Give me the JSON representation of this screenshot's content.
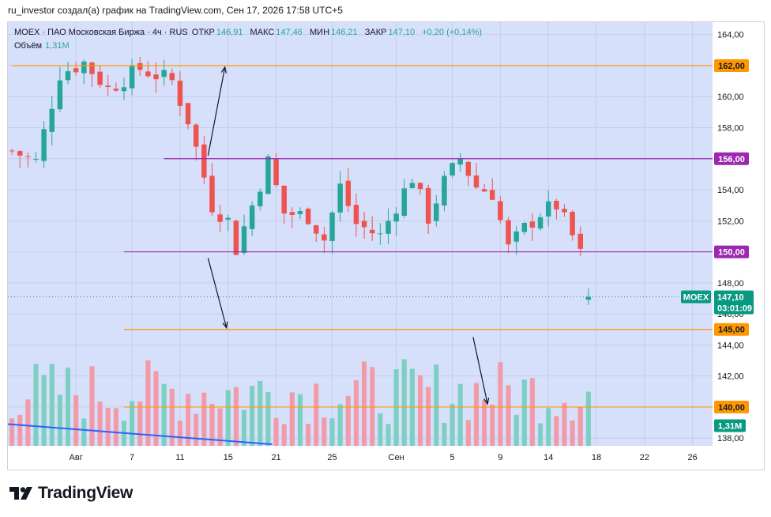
{
  "header": {
    "caption": "ru_investor создал(а) график на TradingView.com, Сен 17, 2026 17:58 UTC+5"
  },
  "legend": {
    "symbol": "MOEX · ПАО Московская Биржа · 4ч · RUS",
    "open_label": "ОТКР",
    "open_value": "146,91",
    "high_label": "МАКС",
    "high_value": "147,46",
    "low_label": "МИН",
    "low_value": "146,21",
    "close_label": "ЗАКР",
    "close_value": "147,10",
    "change": "+0,20 (+0,14%)",
    "volume_label": "Объём",
    "volume_value": "1,31M"
  },
  "footer": {
    "brand": "TradingView"
  },
  "colors": {
    "plot_bg": "#d6e0fb",
    "up": "#26a69a",
    "down": "#ef5350",
    "vol_up": "#7dcfc2",
    "vol_down": "#f29aa8",
    "orange_line": "#ff9800",
    "purple_line": "#9c27b0",
    "trend_line": "#2962ff",
    "price_label": "#089981"
  },
  "chart_data": {
    "type": "candlestick",
    "symbol": "MOEX",
    "timeframe": "4ч",
    "ylim": [
      137.5,
      164.8
    ],
    "yticks": [
      "138,00",
      "140,00",
      "142,00",
      "144,00",
      "146,00",
      "148,00",
      "150,00",
      "152,00",
      "154,00",
      "156,00",
      "158,00",
      "160,00",
      "162,00",
      "164,00"
    ],
    "ytick_values": [
      138,
      140,
      142,
      144,
      146,
      148,
      150,
      152,
      154,
      156,
      158,
      160,
      162,
      164
    ],
    "xticks": [
      "Авг",
      "7",
      "11",
      "15",
      "21",
      "25",
      "Сен",
      "5",
      "9",
      "14",
      "18",
      "22",
      "26"
    ],
    "xtick_bar_index": [
      8,
      15,
      21,
      27,
      33,
      40,
      48,
      55,
      61,
      67,
      73,
      79,
      85
    ],
    "total_bars_span": 88,
    "last_bar_index": 72,
    "key_points": [
      {
        "bar": 0,
        "price": 156.5
      },
      {
        "bar": 3,
        "price": 155.8
      },
      {
        "bar": 6,
        "price": 161.5
      },
      {
        "bar": 9,
        "price": 162.2
      },
      {
        "bar": 12,
        "price": 160.5
      },
      {
        "bar": 16,
        "price": 161.8
      },
      {
        "bar": 20,
        "price": 161.0
      },
      {
        "bar": 22,
        "price": 158.5
      },
      {
        "bar": 25,
        "price": 153.0
      },
      {
        "bar": 27,
        "price": 152.0
      },
      {
        "bar": 28,
        "price": 150.2
      },
      {
        "bar": 30,
        "price": 153.0
      },
      {
        "bar": 32,
        "price": 155.8
      },
      {
        "bar": 34,
        "price": 152.5
      },
      {
        "bar": 37,
        "price": 152.3
      },
      {
        "bar": 39,
        "price": 150.8
      },
      {
        "bar": 41,
        "price": 154.2
      },
      {
        "bar": 43,
        "price": 151.8
      },
      {
        "bar": 46,
        "price": 151.0
      },
      {
        "bar": 48,
        "price": 153.0
      },
      {
        "bar": 50,
        "price": 154.8
      },
      {
        "bar": 52,
        "price": 152.2
      },
      {
        "bar": 54,
        "price": 154.5
      },
      {
        "bar": 56,
        "price": 156.0
      },
      {
        "bar": 58,
        "price": 154.2
      },
      {
        "bar": 60,
        "price": 153.8
      },
      {
        "bar": 62,
        "price": 150.2
      },
      {
        "bar": 64,
        "price": 151.5
      },
      {
        "bar": 66,
        "price": 152.5
      },
      {
        "bar": 68,
        "price": 153.0
      },
      {
        "bar": 70,
        "price": 151.0
      },
      {
        "bar": 71,
        "price": 149.8
      },
      {
        "bar": 72,
        "price": 147.1
      }
    ],
    "horizontal_levels": [
      {
        "price": 162.0,
        "label": "162,00",
        "color": "orange"
      },
      {
        "price": 156.0,
        "label": "156,00",
        "color": "purple"
      },
      {
        "price": 150.0,
        "label": "150,00",
        "color": "purple"
      },
      {
        "price": 145.0,
        "label": "145,00",
        "color": "orange"
      },
      {
        "price": 140.0,
        "label": "140,00",
        "color": "orange"
      }
    ],
    "current_price": {
      "symbol": "MOEX",
      "price_label": "147,10",
      "price": 147.1,
      "countdown": "03:01:09"
    },
    "volume": {
      "label": "1,31M",
      "last": 1.31
    }
  }
}
